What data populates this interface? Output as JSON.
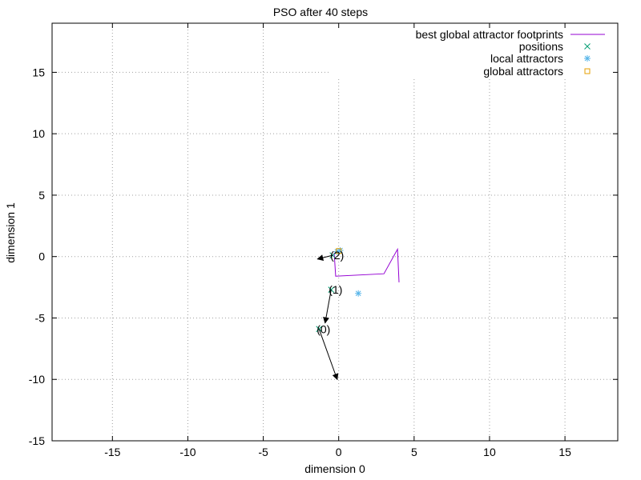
{
  "chart_data": {
    "type": "scatter",
    "title": "PSO after 40 steps",
    "xlabel": "dimension 0",
    "ylabel": "dimension 1",
    "xlim": [
      -19,
      18.5
    ],
    "ylim": [
      -15,
      19
    ],
    "xticks": [
      -15,
      -10,
      -5,
      0,
      5,
      10,
      15
    ],
    "yticks": [
      -15,
      -10,
      -5,
      0,
      5,
      10,
      15
    ],
    "grid": true,
    "legend_position": "top-right",
    "series": [
      {
        "name": "best global attractor footprints",
        "kind": "line",
        "color": "#9400d3",
        "points": [
          [
            -0.3,
            0.3
          ],
          [
            -0.2,
            -1.6
          ],
          [
            3.0,
            -1.4
          ],
          [
            3.9,
            0.6
          ],
          [
            4.0,
            -2.1
          ]
        ]
      },
      {
        "name": "positions",
        "kind": "points",
        "marker": "x",
        "color": "#009e73",
        "points": [
          [
            -1.3,
            -5.9
          ],
          [
            -0.5,
            -2.7
          ],
          [
            -0.4,
            0.1
          ]
        ]
      },
      {
        "name": "local attractors",
        "kind": "points",
        "marker": "star",
        "color": "#56b4e9",
        "points": [
          [
            1.3,
            -3.0
          ],
          [
            -0.1,
            0.4
          ],
          [
            0.1,
            0.5
          ]
        ]
      },
      {
        "name": "global attractors",
        "kind": "points",
        "marker": "square",
        "color": "#e69f00",
        "points": [
          [
            0.0,
            0.45
          ]
        ]
      }
    ],
    "velocity_arrows": [
      {
        "from": [
          -1.3,
          -5.9
        ],
        "to": [
          -0.1,
          -10.0
        ]
      },
      {
        "from": [
          -0.5,
          -2.7
        ],
        "to": [
          -0.9,
          -5.4
        ]
      },
      {
        "from": [
          -0.4,
          0.1
        ],
        "to": [
          -1.4,
          -0.2
        ]
      }
    ],
    "particle_labels": [
      {
        "text": "(0)",
        "x": -1.3,
        "y": -5.9
      },
      {
        "text": "(1)",
        "x": -0.5,
        "y": -2.7
      },
      {
        "text": "(2)",
        "x": -0.4,
        "y": 0.1
      }
    ]
  }
}
